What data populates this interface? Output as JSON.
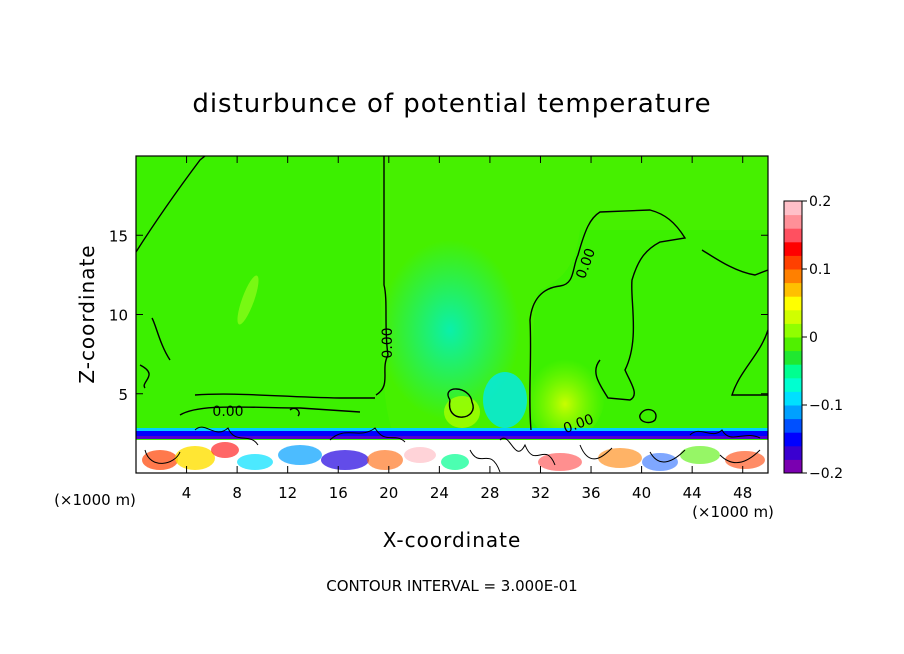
{
  "chart_data": {
    "type": "heatmap",
    "title": "disturbunce of potential temperature",
    "xlabel": "X-coordinate",
    "ylabel": "Z-coordinate",
    "x_unit": "(×1000 m)",
    "y_unit": "(×1000 m)",
    "xlim": [
      0,
      50
    ],
    "ylim": [
      0,
      20
    ],
    "x_ticks": [
      4,
      8,
      12,
      16,
      20,
      24,
      28,
      32,
      36,
      40,
      44,
      48
    ],
    "y_ticks": [
      5,
      10,
      15
    ],
    "colorbar": {
      "range": [
        -0.2,
        0.2
      ],
      "tick_values": [
        0.2,
        0.1,
        0,
        -0.1,
        -0.2
      ],
      "tick_labels": [
        "0.2",
        "0.1",
        "0",
        "−0.1",
        "−0.2"
      ],
      "colors": [
        "#7a00b0",
        "#3a00d0",
        "#0000ff",
        "#0050ff",
        "#00a0ff",
        "#00e0ff",
        "#00ffd0",
        "#00ff90",
        "#20e830",
        "#50f000",
        "#90ff00",
        "#d0ff00",
        "#ffff00",
        "#ffc000",
        "#ff8000",
        "#ff4000",
        "#ff0000",
        "#ff5060",
        "#ff9098",
        "#ffc0c8"
      ]
    },
    "contour_labels": [
      "0.00",
      "0.00",
      "0.00",
      "0.00"
    ],
    "contour_interval_text": "CONTOUR INTERVAL = 3.000E-01"
  }
}
